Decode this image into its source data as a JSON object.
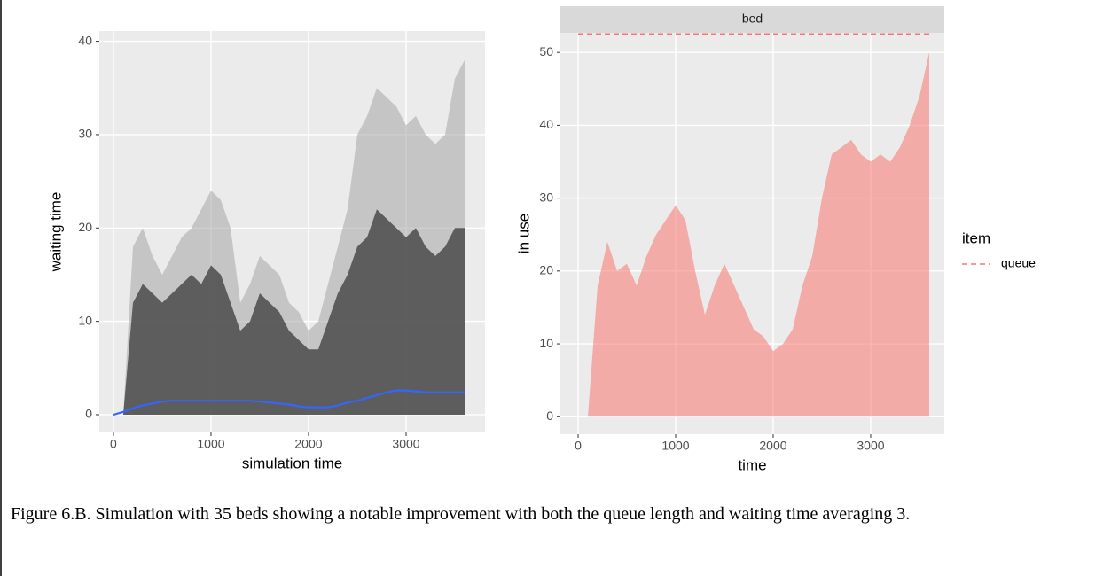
{
  "chart_data": [
    {
      "type": "line",
      "xlabel": "simulation time",
      "ylabel": "waiting time",
      "x": [
        0,
        100,
        200,
        300,
        400,
        500,
        600,
        700,
        800,
        900,
        1000,
        1100,
        1200,
        1300,
        1400,
        1500,
        1600,
        1700,
        1800,
        1900,
        2000,
        2100,
        2200,
        2300,
        2400,
        2500,
        2600,
        2700,
        2800,
        2900,
        3000,
        3100,
        3200,
        3300,
        3400,
        3500,
        3600
      ],
      "series": [
        {
          "color": "#a6a6a6",
          "fill": true,
          "values": [
            0,
            0,
            18,
            20,
            17,
            15,
            17,
            19,
            20,
            22,
            24,
            23,
            20,
            12,
            14,
            17,
            16,
            15,
            12,
            11,
            9,
            10,
            14,
            18,
            22,
            30,
            32,
            35,
            34,
            33,
            31,
            32,
            30,
            29,
            30,
            36,
            38
          ]
        },
        {
          "color": "#3a3a3a",
          "fill": true,
          "values": [
            0,
            0,
            12,
            14,
            13,
            12,
            13,
            14,
            15,
            14,
            16,
            15,
            12,
            9,
            10,
            13,
            12,
            11,
            9,
            8,
            7,
            7,
            10,
            13,
            15,
            18,
            19,
            22,
            21,
            20,
            19,
            20,
            18,
            17,
            18,
            20,
            20
          ]
        },
        {
          "color": "#3366ff",
          "fill": false,
          "values": [
            0,
            0.3,
            0.7,
            1,
            1.2,
            1.4,
            1.5,
            1.5,
            1.5,
            1.5,
            1.5,
            1.5,
            1.5,
            1.5,
            1.5,
            1.4,
            1.3,
            1.2,
            1.1,
            0.9,
            0.8,
            0.8,
            0.8,
            1,
            1.3,
            1.5,
            1.8,
            2.1,
            2.4,
            2.6,
            2.6,
            2.5,
            2.4,
            2.4,
            2.4,
            2.4,
            2.4
          ]
        }
      ],
      "xlim": [
        -145,
        3809
      ],
      "xticks": [
        0,
        1000,
        2000,
        3000
      ],
      "ylim": [
        -1.9,
        41.1
      ],
      "yticks": [
        0,
        10,
        20,
        30,
        40
      ],
      "grid": true
    },
    {
      "type": "line",
      "strip": "bed",
      "xlabel": "time",
      "ylabel": "in use",
      "legend_title": "item",
      "legend": "right",
      "x": [
        0,
        100,
        200,
        300,
        400,
        500,
        600,
        700,
        800,
        900,
        1000,
        1100,
        1200,
        1300,
        1400,
        1500,
        1600,
        1700,
        1800,
        1900,
        2000,
        2100,
        2200,
        2300,
        2400,
        2500,
        2600,
        2700,
        2800,
        2900,
        3000,
        3100,
        3200,
        3300,
        3400,
        3500,
        3600
      ],
      "series": [
        {
          "color": "#f8766d",
          "fill": true,
          "values": [
            0,
            0,
            18,
            24,
            20,
            21,
            18,
            22,
            25,
            27,
            29,
            27,
            20,
            14,
            18,
            21,
            18,
            15,
            12,
            11,
            9,
            10,
            12,
            18,
            22,
            30,
            36,
            37,
            38,
            36,
            35,
            36,
            35,
            37,
            40,
            44,
            50
          ]
        },
        {
          "name": "queue",
          "color": "#f8766d",
          "dash": true,
          "fill": false,
          "values": [
            52.5,
            52.5,
            52.5,
            52.5,
            52.5,
            52.5,
            52.5,
            52.5,
            52.5,
            52.5,
            52.5,
            52.5,
            52.5,
            52.5,
            52.5,
            52.5,
            52.5,
            52.5,
            52.5,
            52.5,
            52.5,
            52.5,
            52.5,
            52.5,
            52.5,
            52.5,
            52.5,
            52.5,
            52.5,
            52.5,
            52.5,
            52.5,
            52.5,
            52.5,
            52.5,
            52.5,
            52.5
          ]
        }
      ],
      "xlim": [
        -182,
        3755
      ],
      "xticks": [
        0,
        1000,
        2000,
        3000
      ],
      "ylim": [
        -2.4,
        52.7
      ],
      "yticks": [
        0,
        10,
        20,
        30,
        40,
        50
      ],
      "grid": true
    }
  ],
  "caption": "Figure 6.B. Simulation with 35 beds showing a notable improvement with both the queue length and waiting time averaging 3."
}
